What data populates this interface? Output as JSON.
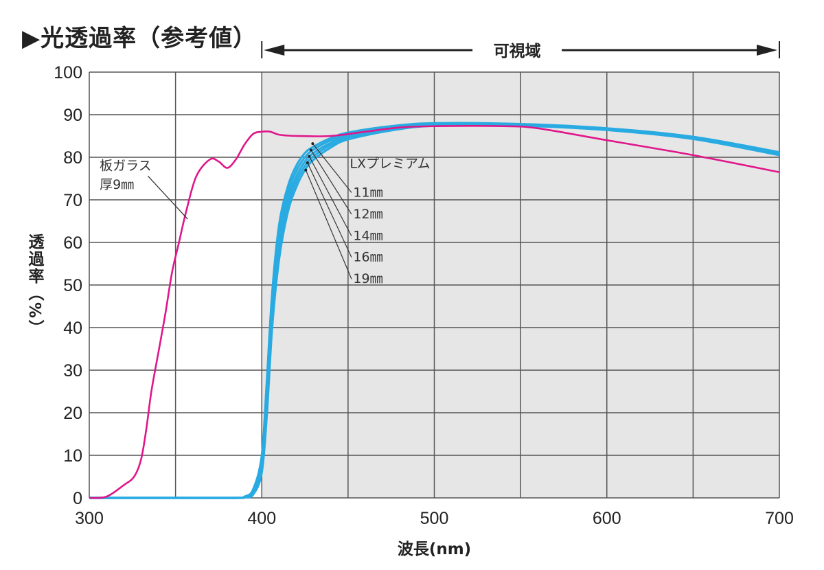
{
  "title": "▶光透過率（参考値）",
  "chart_data": {
    "type": "line",
    "title": "光透過率（参考値）",
    "xlabel": "波長(nm)",
    "ylabel": "透過率（%）",
    "xlim": [
      300,
      700
    ],
    "ylim": [
      0,
      100
    ],
    "xticks": [
      300,
      400,
      500,
      600,
      700
    ],
    "yticks": [
      0,
      10,
      20,
      30,
      40,
      50,
      60,
      70,
      80,
      90,
      100
    ],
    "grid": true,
    "visible_range": {
      "label": "可視域",
      "from": 400,
      "to": 700
    },
    "colors": {
      "plate_glass": "#e0168a",
      "lx_premium": "#29abe2",
      "visible_bg": "#e6e6e6",
      "grid": "#555555"
    },
    "series": [
      {
        "name": "板ガラス 厚9㎜",
        "label_lines": [
          "板ガラス",
          "厚9㎜"
        ],
        "color": "#e0168a",
        "x": [
          300,
          310,
          320,
          326,
          330,
          333,
          336,
          340,
          344,
          348,
          352,
          356,
          362,
          370,
          375,
          380,
          385,
          390,
          395,
          400,
          405,
          410,
          420,
          440,
          460,
          480,
          500,
          540,
          560,
          600,
          650,
          700
        ],
        "y": [
          0,
          0.3,
          3,
          5,
          9,
          16,
          25,
          34,
          43,
          53,
          60,
          67,
          75.5,
          79.5,
          79,
          77.5,
          79.5,
          83,
          85.5,
          86,
          86,
          85.3,
          85,
          85,
          86,
          87,
          87.3,
          87.3,
          86.8,
          84,
          80.5,
          76.5
        ]
      },
      {
        "name": "11㎜",
        "color": "#29abe2",
        "x": [
          300,
          350,
          385,
          390,
          395,
          400,
          403,
          406,
          410,
          415,
          420,
          425,
          430,
          440,
          450,
          475,
          500,
          550,
          600,
          650,
          700
        ],
        "y": [
          0,
          0,
          0,
          0.3,
          2,
          10,
          28,
          48,
          64,
          73,
          78,
          81,
          82.5,
          84.5,
          85.8,
          87.3,
          88,
          87.8,
          86.8,
          84.8,
          81.2
        ]
      },
      {
        "name": "12㎜",
        "color": "#29abe2",
        "x": [
          300,
          350,
          385,
          390,
          395,
          400,
          403,
          406,
          410,
          415,
          420,
          425,
          430,
          440,
          450,
          475,
          500,
          550,
          600,
          650,
          700
        ],
        "y": [
          0,
          0,
          0,
          0.2,
          1.5,
          9,
          26,
          46,
          62,
          71.5,
          76.8,
          80,
          81.8,
          84,
          85.4,
          87,
          87.8,
          87.7,
          86.7,
          84.6,
          81
        ]
      },
      {
        "name": "14㎜",
        "color": "#29abe2",
        "x": [
          300,
          350,
          385,
          390,
          395,
          400,
          403,
          406,
          410,
          415,
          420,
          425,
          430,
          440,
          450,
          475,
          500,
          550,
          600,
          650,
          700
        ],
        "y": [
          0,
          0,
          0,
          0.2,
          1.2,
          8,
          24,
          44,
          60,
          70,
          75.5,
          79,
          81,
          83.4,
          85,
          86.7,
          87.6,
          87.6,
          86.6,
          84.5,
          80.8
        ]
      },
      {
        "name": "16㎜",
        "color": "#29abe2",
        "x": [
          300,
          350,
          385,
          390,
          395,
          400,
          403,
          406,
          410,
          415,
          420,
          425,
          430,
          440,
          450,
          475,
          500,
          550,
          600,
          650,
          700
        ],
        "y": [
          0,
          0,
          0,
          0.1,
          1,
          7,
          22,
          42,
          58,
          68.5,
          74.3,
          78,
          80.2,
          82.9,
          84.6,
          86.5,
          87.5,
          87.5,
          86.5,
          84.4,
          80.7
        ]
      },
      {
        "name": "19㎜",
        "color": "#29abe2",
        "x": [
          300,
          350,
          385,
          390,
          395,
          400,
          403,
          406,
          410,
          415,
          420,
          425,
          430,
          440,
          450,
          475,
          500,
          550,
          600,
          650,
          700
        ],
        "y": [
          0,
          0,
          0,
          0.1,
          0.8,
          6,
          20,
          40,
          56,
          67,
          73,
          77,
          79.4,
          82.3,
          84.2,
          86.3,
          87.4,
          87.4,
          86.4,
          84.3,
          80.5
        ]
      }
    ],
    "annotations": {
      "group_label": "LXプレミアム"
    }
  }
}
